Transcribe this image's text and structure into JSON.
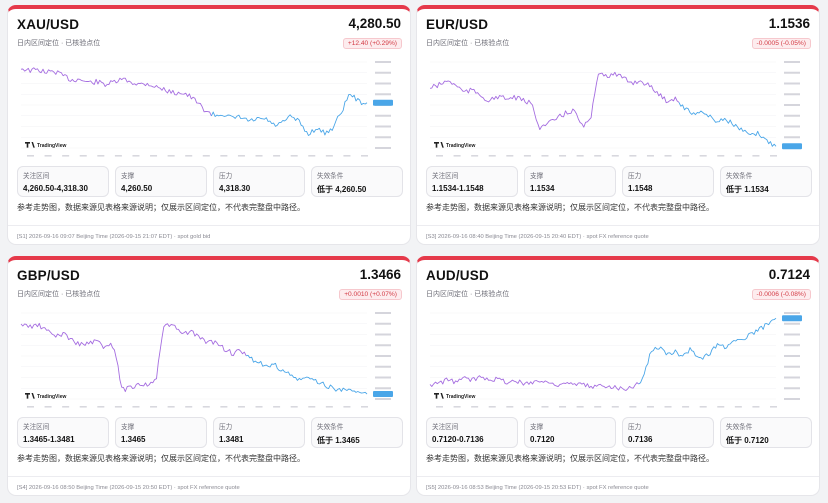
{
  "cards": [
    {
      "symbol": "XAU/USD",
      "price": "4,280.50",
      "subtitle": "日内区间定位 · 已核验点位",
      "change": "+12.40 (+0.29%)",
      "cells": [
        {
          "label": "关注区间",
          "value": "4,260.50-4,318.30"
        },
        {
          "label": "支撑",
          "value": "4,260.50"
        },
        {
          "label": "压力",
          "value": "4,318.30"
        },
        {
          "label": "失效条件",
          "value": "低于 4,260.50"
        }
      ],
      "note": "参考走势图，数据来源见表格来源说明；仅展示区间定位，不代表完整盘中路径。",
      "footer": "[S1] 2026-09-16 09:07 Beijing Time (2026-09-15 21:07 EDT) · spot gold bid",
      "watermark": "TradingView",
      "chart_data": {
        "type": "line",
        "trend": [
          0.07,
          0.1,
          0.09,
          0.12,
          0.11,
          0.16,
          0.21,
          0.2,
          0.24,
          0.23,
          0.26,
          0.24,
          0.2,
          0.23,
          0.26,
          0.25,
          0.29,
          0.32,
          0.36,
          0.35,
          0.4,
          0.48,
          0.58,
          0.62,
          0.6,
          0.66,
          0.64,
          0.69,
          0.67,
          0.66,
          0.74,
          0.71,
          0.63,
          0.7,
          0.84,
          0.77,
          0.83,
          0.76,
          0.57,
          0.36,
          0.46,
          0.48
        ],
        "split": 0.55
      }
    },
    {
      "symbol": "EUR/USD",
      "price": "1.1536",
      "subtitle": "日内区间定位 · 已核验点位",
      "change": "-0.0005 (-0.05%)",
      "cells": [
        {
          "label": "关注区间",
          "value": "1.1534-1.1548"
        },
        {
          "label": "支撑",
          "value": "1.1534"
        },
        {
          "label": "压力",
          "value": "1.1548"
        },
        {
          "label": "失效条件",
          "value": "低于 1.1534"
        }
      ],
      "note": "参考走势图，数据来源见表格来源说明；仅展示区间定位，不代表完整盘中路径。",
      "footer": "[S3] 2026-09-16 08:40 Beijing Time (2026-09-15 20:40 EDT) · spot FX reference quote",
      "watermark": "TradingView",
      "chart_data": {
        "type": "line",
        "trend": [
          0.3,
          0.27,
          0.22,
          0.26,
          0.35,
          0.33,
          0.38,
          0.46,
          0.4,
          0.43,
          0.41,
          0.45,
          0.48,
          0.76,
          0.72,
          0.66,
          0.6,
          0.56,
          0.74,
          0.69,
          0.1,
          0.16,
          0.14,
          0.2,
          0.24,
          0.22,
          0.28,
          0.36,
          0.45,
          0.42,
          0.52,
          0.6,
          0.57,
          0.63,
          0.69,
          0.66,
          0.73,
          0.8,
          0.86,
          0.83,
          0.93,
          0.97
        ],
        "split": 0.72
      }
    },
    {
      "symbol": "GBP/USD",
      "price": "1.3466",
      "subtitle": "日内区间定位 · 已核验点位",
      "change": "+0.0010 (+0.07%)",
      "cells": [
        {
          "label": "关注区间",
          "value": "1.3465-1.3481"
        },
        {
          "label": "支撑",
          "value": "1.3465"
        },
        {
          "label": "压力",
          "value": "1.3481"
        },
        {
          "label": "失效条件",
          "value": "低于 1.3465"
        }
      ],
      "note": "参考走势图，数据来源见表格来源说明；仅展示区间定位，不代表完整盘中路径。",
      "footer": "[S4] 2026-09-16 08:50 Beijing Time (2026-09-15 20:50 EDT) · spot FX reference quote",
      "watermark": "TradingView",
      "chart_data": {
        "type": "line",
        "trend": [
          0.13,
          0.16,
          0.14,
          0.2,
          0.27,
          0.24,
          0.31,
          0.37,
          0.35,
          0.33,
          0.4,
          0.37,
          0.9,
          0.86,
          0.82,
          0.84,
          0.78,
          0.12,
          0.15,
          0.24,
          0.22,
          0.27,
          0.35,
          0.33,
          0.41,
          0.47,
          0.45,
          0.52,
          0.56,
          0.63,
          0.6,
          0.67,
          0.73,
          0.78,
          0.75,
          0.8,
          0.83,
          0.88,
          0.9,
          0.86,
          0.93,
          0.95
        ],
        "split": 0.65
      }
    },
    {
      "symbol": "AUD/USD",
      "price": "0.7124",
      "subtitle": "日内区间定位 · 已核验点位",
      "change": "-0.0006 (-0.08%)",
      "cells": [
        {
          "label": "关注区间",
          "value": "0.7120-0.7136"
        },
        {
          "label": "支撑",
          "value": "0.7120"
        },
        {
          "label": "压力",
          "value": "0.7136"
        },
        {
          "label": "失效条件",
          "value": "低于 0.7120"
        }
      ],
      "note": "参考走势图，数据来源见表格来源说明；仅展示区间定位，不代表完整盘中路径。",
      "footer": "[S5] 2026-09-16 08:53 Beijing Time (2026-09-15 20:53 EDT) · spot FX reference quote",
      "watermark": "TradingView",
      "chart_data": {
        "type": "line",
        "trend": [
          0.84,
          0.82,
          0.78,
          0.8,
          0.76,
          0.78,
          0.74,
          0.76,
          0.77,
          0.8,
          0.79,
          0.82,
          0.8,
          0.79,
          0.81,
          0.83,
          0.81,
          0.84,
          0.83,
          0.86,
          0.85,
          0.84,
          0.86,
          0.88,
          0.85,
          0.82,
          0.5,
          0.38,
          0.48,
          0.45,
          0.5,
          0.41,
          0.55,
          0.48,
          0.37,
          0.4,
          0.3,
          0.32,
          0.25,
          0.2,
          0.12,
          0.04
        ],
        "split": 0.6
      }
    }
  ],
  "colors": {
    "accent": "#e5394a",
    "up": "#a56de0",
    "down": "#4aa6e8",
    "badge_text": "#d23a44"
  }
}
